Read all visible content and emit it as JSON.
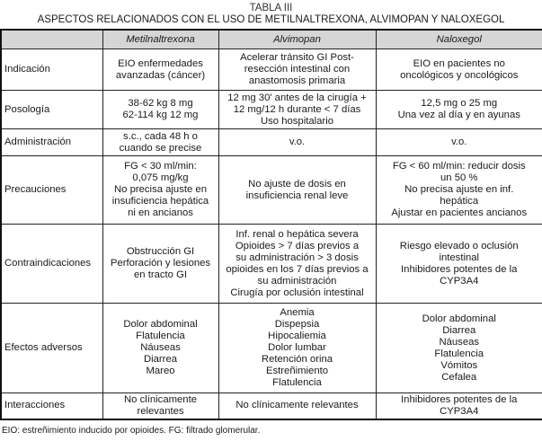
{
  "title": "TABLA III",
  "subtitle": "ASPECTOS RELACIONADOS CON EL USO DE METILNALTREXONA, ALVIMOPAN Y NALOXEGOL",
  "columns": [
    "",
    "Metilnaltrexona",
    "Alvimopan",
    "Naloxegol"
  ],
  "rows": [
    {
      "label": "Indicación",
      "cells": [
        [
          "EIO enfermedades",
          "avanzadas (cáncer)"
        ],
        [
          "Acelerar tránsito GI Post-",
          "resección intestinal con",
          "anastomosis primaria"
        ],
        [
          "EIO en pacientes no",
          "oncológicos y oncológicos"
        ]
      ]
    },
    {
      "label": "Posología",
      "cells": [
        [
          "38-62 kg 8 mg",
          "62-114 kg 12 mg"
        ],
        [
          "12 mg 30' antes de la cirugía +",
          "12 mg/12 h durante < 7 días",
          "Uso hospitalario"
        ],
        [
          "12,5 mg o 25 mg",
          "Una vez al día y en ayunas"
        ]
      ]
    },
    {
      "label": "Administración",
      "cells": [
        [
          "s.c., cada 48 h o",
          "cuando se precise"
        ],
        [
          "v.o."
        ],
        [
          "v.o."
        ]
      ]
    },
    {
      "label": "Precauciones",
      "cells": [
        [
          "FG < 30 ml/min:",
          "0,075 mg/kg",
          "No precisa ajuste en",
          "insuficiencia hepática",
          "ni en ancianos"
        ],
        [
          "No ajuste de dosis en",
          "insuficiencia renal leve"
        ],
        [
          "FG < 60 ml/min: reducir dosis",
          "un 50 %",
          "No precisa ajuste en inf.",
          "hepática",
          "Ajustar en pacientes ancianos"
        ]
      ]
    },
    {
      "label": "Contraindicaciones",
      "cells": [
        [
          "Obstrucción GI",
          "Perforación y lesiones",
          "en tracto GI"
        ],
        [
          "Inf. renal o hepática severa",
          "Opioides > 7 días previos a",
          "su administración > 3 dosis",
          "opioides en los 7 días previos a",
          "su administración",
          "Cirugía por oclusión intestinal"
        ],
        [
          "Riesgo elevado o oclusión",
          "intestinal",
          "Inhibidores potentes de la",
          "CYP3A4"
        ]
      ]
    },
    {
      "label": "Efectos adversos",
      "cells": [
        [
          "Dolor abdominal",
          "Flatulencia",
          "Náuseas",
          "Diarrea",
          "Mareo"
        ],
        [
          "Anemia",
          "Dispepsia",
          "Hipocaliemia",
          "Dolor lumbar",
          "Retención orina",
          "Estreñimiento",
          "Flatulencia"
        ],
        [
          "Dolor abdominal",
          "Diarrea",
          "Náuseas",
          "Flatulencia",
          "Vómitos",
          "Cefalea"
        ]
      ]
    },
    {
      "label": "Interacciones",
      "cells": [
        [
          "No clínicamente",
          "relevantes"
        ],
        [
          "No clínicamente relevantes"
        ],
        [
          "Inhibidores potentes de la",
          "CYP3A4"
        ]
      ]
    }
  ],
  "footnote": "EIO: estreñimiento inducido por opioides. FG: filtrado glomerular.",
  "colors": {
    "header_bg": "#d6d6d6",
    "border": "#222222"
  }
}
